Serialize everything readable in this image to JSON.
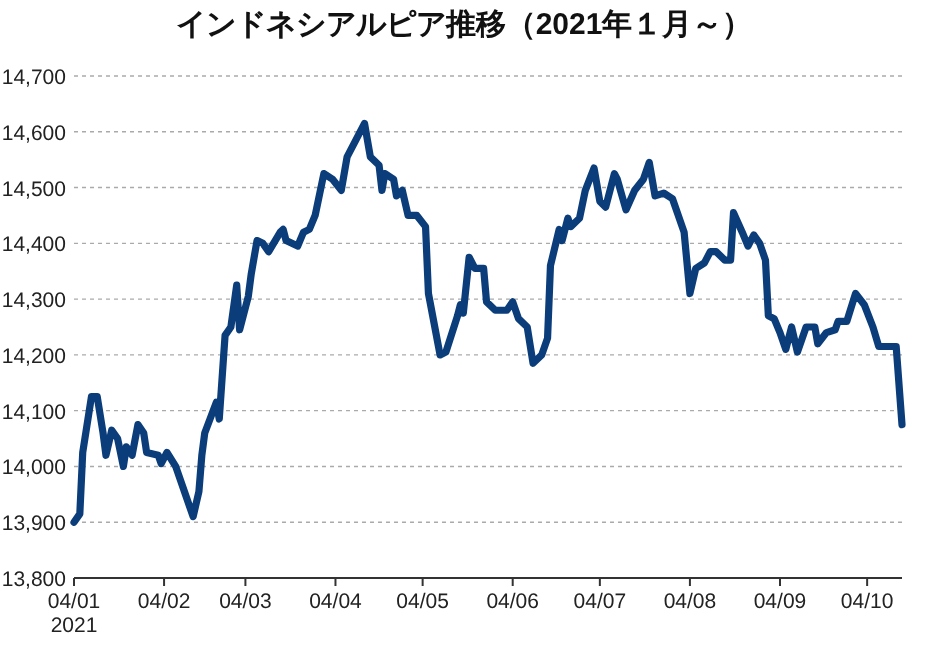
{
  "chart_data": {
    "type": "line",
    "title": "インドネシアルピア推移（2021年１月～）",
    "x": [
      "2021-01-04",
      "2021-01-06",
      "2021-01-07",
      "2021-01-10",
      "2021-01-12",
      "2021-01-14",
      "2021-01-15",
      "2021-01-17",
      "2021-01-19",
      "2021-01-21",
      "2021-01-22",
      "2021-01-24",
      "2021-01-26",
      "2021-01-28",
      "2021-01-29",
      "2021-02-02",
      "2021-02-03",
      "2021-02-05",
      "2021-02-08",
      "2021-02-11",
      "2021-02-14",
      "2021-02-16",
      "2021-02-17",
      "2021-02-18",
      "2021-02-22",
      "2021-02-23",
      "2021-02-25",
      "2021-02-27",
      "2021-03-01",
      "2021-03-02",
      "2021-03-05",
      "2021-03-06",
      "2021-03-08",
      "2021-03-10",
      "2021-03-12",
      "2021-03-16",
      "2021-03-17",
      "2021-03-18",
      "2021-03-22",
      "2021-03-24",
      "2021-03-26",
      "2021-03-28",
      "2021-03-31",
      "2021-04-03",
      "2021-04-06",
      "2021-04-08",
      "2021-04-11",
      "2021-04-14",
      "2021-04-16",
      "2021-04-19",
      "2021-04-20",
      "2021-04-21",
      "2021-04-24",
      "2021-04-25",
      "2021-04-27",
      "2021-04-29",
      "2021-05-02",
      "2021-05-05",
      "2021-05-06",
      "2021-05-10",
      "2021-05-12",
      "2021-05-16",
      "2021-05-17",
      "2021-05-18",
      "2021-05-20",
      "2021-05-22",
      "2021-05-25",
      "2021-05-26",
      "2021-05-29",
      "2021-06-02",
      "2021-06-04",
      "2021-06-06",
      "2021-06-09",
      "2021-06-11",
      "2021-06-14",
      "2021-06-16",
      "2021-06-17",
      "2021-06-20",
      "2021-06-21",
      "2021-06-23",
      "2021-06-24",
      "2021-06-27",
      "2021-06-29",
      "2021-07-02",
      "2021-07-04",
      "2021-07-06",
      "2021-07-09",
      "2021-07-10",
      "2021-07-13",
      "2021-07-16",
      "2021-07-19",
      "2021-07-21",
      "2021-07-23",
      "2021-07-26",
      "2021-07-29",
      "2021-08-02",
      "2021-08-04",
      "2021-08-06",
      "2021-08-09",
      "2021-08-11",
      "2021-08-13",
      "2021-08-16",
      "2021-08-18",
      "2021-08-19",
      "2021-08-22",
      "2021-08-24",
      "2021-08-26",
      "2021-08-28",
      "2021-08-30",
      "2021-08-31",
      "2021-09-02",
      "2021-09-04",
      "2021-09-06",
      "2021-09-08",
      "2021-09-10",
      "2021-09-13",
      "2021-09-16",
      "2021-09-17",
      "2021-09-20",
      "2021-09-23",
      "2021-09-24",
      "2021-09-27",
      "2021-09-30",
      "2021-10-03",
      "2021-10-06",
      "2021-10-08",
      "2021-10-11",
      "2021-10-14",
      "2021-10-16"
    ],
    "series": [
      {
        "color": "#0b3d7a",
        "values": [
          13900,
          13915,
          14025,
          14125,
          14125,
          14060,
          14020,
          14065,
          14050,
          14000,
          14035,
          14020,
          14075,
          14060,
          14025,
          14020,
          14005,
          14025,
          14000,
          13955,
          13910,
          13955,
          14020,
          14060,
          14115,
          14085,
          14235,
          14250,
          14325,
          14245,
          14305,
          14345,
          14405,
          14400,
          14385,
          14420,
          14425,
          14405,
          14395,
          14420,
          14425,
          14450,
          14525,
          14515,
          14495,
          14555,
          14585,
          14615,
          14555,
          14540,
          14495,
          14525,
          14515,
          14485,
          14495,
          14450,
          14450,
          14430,
          14310,
          14200,
          14205,
          14270,
          14290,
          14275,
          14375,
          14355,
          14355,
          14295,
          14280,
          14280,
          14295,
          14265,
          14250,
          14185,
          14200,
          14230,
          14360,
          14425,
          14405,
          14445,
          14430,
          14445,
          14495,
          14535,
          14475,
          14465,
          14525,
          14515,
          14460,
          14495,
          14515,
          14545,
          14485,
          14490,
          14480,
          14420,
          14310,
          14355,
          14365,
          14385,
          14385,
          14370,
          14370,
          14455,
          14420,
          14395,
          14415,
          14400,
          14370,
          14270,
          14265,
          14240,
          14210,
          14250,
          14205,
          14250,
          14250,
          14220,
          14240,
          14245,
          14260,
          14260,
          14310,
          14290,
          14250,
          14215,
          14215,
          14215,
          14075
        ]
      }
    ],
    "xlim": [
      "2021-01-04",
      "2021-10-16"
    ],
    "xticks": [
      {
        "value": "2021-01-04",
        "label": "04/01\n2021"
      },
      {
        "value": "2021-02-04",
        "label": "04/02"
      },
      {
        "value": "2021-03-04",
        "label": "04/03"
      },
      {
        "value": "2021-04-04",
        "label": "04/04"
      },
      {
        "value": "2021-05-04",
        "label": "04/05"
      },
      {
        "value": "2021-06-04",
        "label": "04/06"
      },
      {
        "value": "2021-07-04",
        "label": "04/07"
      },
      {
        "value": "2021-08-04",
        "label": "04/08"
      },
      {
        "value": "2021-09-04",
        "label": "04/09"
      },
      {
        "value": "2021-10-04",
        "label": "04/10"
      }
    ],
    "ylim": [
      13800,
      14700
    ],
    "yticks": [
      {
        "value": 13800,
        "label": "13,800"
      },
      {
        "value": 13900,
        "label": "13,900"
      },
      {
        "value": 14000,
        "label": "14,000"
      },
      {
        "value": 14100,
        "label": "14,100"
      },
      {
        "value": 14200,
        "label": "14,200"
      },
      {
        "value": 14300,
        "label": "14,300"
      },
      {
        "value": 14400,
        "label": "14,400"
      },
      {
        "value": 14500,
        "label": "14,500"
      },
      {
        "value": 14600,
        "label": "14,600"
      },
      {
        "value": 14700,
        "label": "14,700"
      }
    ],
    "grid": "y",
    "marker": "none",
    "line_style": "solid"
  }
}
